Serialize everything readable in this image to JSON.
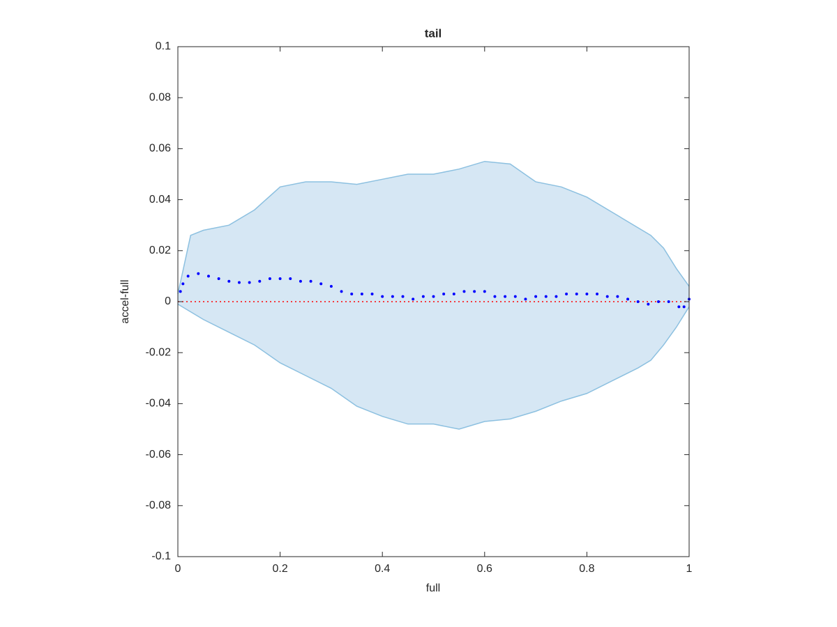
{
  "chart_data": {
    "type": "band-scatter",
    "title": "tail",
    "xlabel": "full",
    "ylabel": "accel-full",
    "xlim": [
      0,
      1
    ],
    "ylim": [
      -0.1,
      0.1
    ],
    "xticks": [
      0,
      0.2,
      0.4,
      0.6,
      0.8,
      1
    ],
    "yticks": [
      -0.1,
      -0.08,
      -0.06,
      -0.04,
      -0.02,
      0,
      0.02,
      0.04,
      0.06,
      0.08,
      0.1
    ],
    "band": {
      "color": "#d6e7f4",
      "edge_color": "#8cc0e0",
      "x": [
        0,
        0.025,
        0.05,
        0.1,
        0.15,
        0.2,
        0.25,
        0.3,
        0.35,
        0.4,
        0.45,
        0.5,
        0.55,
        0.6,
        0.65,
        0.7,
        0.75,
        0.8,
        0.85,
        0.9,
        0.925,
        0.95,
        0.975,
        1
      ],
      "upper": [
        0.003,
        0.026,
        0.028,
        0.03,
        0.036,
        0.045,
        0.047,
        0.047,
        0.046,
        0.048,
        0.05,
        0.05,
        0.052,
        0.055,
        0.054,
        0.047,
        0.045,
        0.041,
        0.035,
        0.029,
        0.026,
        0.021,
        0.013,
        0.006
      ],
      "lower": [
        -0.001,
        -0.004,
        -0.007,
        -0.012,
        -0.017,
        -0.024,
        -0.029,
        -0.034,
        -0.041,
        -0.045,
        -0.048,
        -0.048,
        -0.05,
        -0.047,
        -0.046,
        -0.043,
        -0.039,
        -0.036,
        -0.031,
        -0.026,
        -0.023,
        -0.017,
        -0.01,
        -0.002
      ]
    },
    "points": {
      "color": "#0000ff",
      "x": [
        0.005,
        0.01,
        0.02,
        0.04,
        0.06,
        0.08,
        0.1,
        0.12,
        0.14,
        0.16,
        0.18,
        0.2,
        0.22,
        0.24,
        0.26,
        0.28,
        0.3,
        0.32,
        0.34,
        0.36,
        0.38,
        0.4,
        0.42,
        0.44,
        0.46,
        0.48,
        0.5,
        0.52,
        0.54,
        0.56,
        0.58,
        0.6,
        0.62,
        0.64,
        0.66,
        0.68,
        0.7,
        0.72,
        0.74,
        0.76,
        0.78,
        0.8,
        0.82,
        0.84,
        0.86,
        0.88,
        0.9,
        0.92,
        0.94,
        0.96,
        0.98,
        0.99,
        1
      ],
      "values": [
        0.004,
        0.007,
        0.01,
        0.011,
        0.01,
        0.009,
        0.008,
        0.0075,
        0.0075,
        0.008,
        0.009,
        0.009,
        0.009,
        0.008,
        0.008,
        0.007,
        0.006,
        0.004,
        0.003,
        0.003,
        0.003,
        0.002,
        0.002,
        0.002,
        0.001,
        0.002,
        0.002,
        0.003,
        0.003,
        0.004,
        0.004,
        0.004,
        0.002,
        0.002,
        0.002,
        0.001,
        0.002,
        0.002,
        0.002,
        0.003,
        0.003,
        0.003,
        0.003,
        0.002,
        0.002,
        0.001,
        0,
        -0.001,
        0,
        0,
        -0.002,
        -0.002,
        0.001
      ]
    },
    "reference_line": {
      "value": 0,
      "color": "#ff0000"
    }
  }
}
